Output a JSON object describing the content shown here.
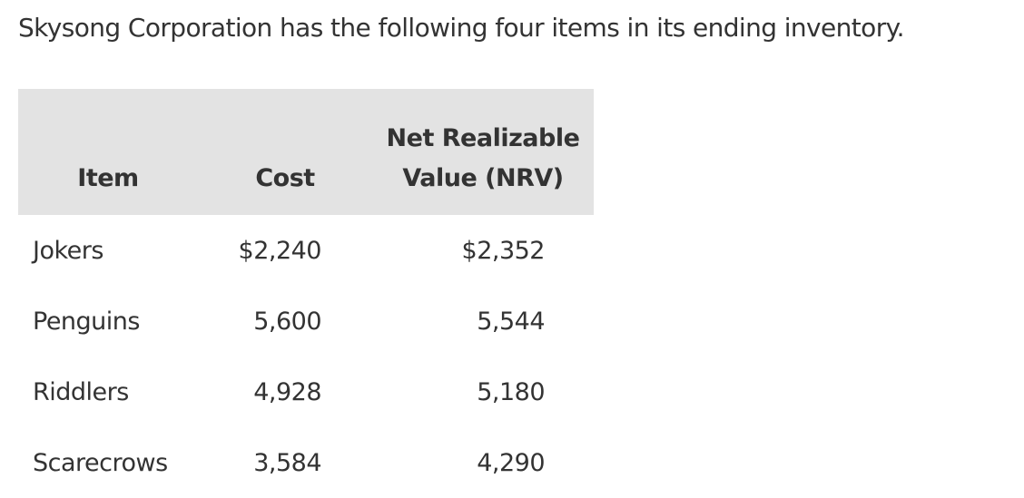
{
  "intro": "Skysong Corporation has the following four items in its ending inventory.",
  "table": {
    "header": [
      "Item",
      "Cost",
      "Net Realizable Value (NRV)"
    ],
    "rows": [
      [
        "Jokers",
        "$2,240",
        "$2,352"
      ],
      [
        "Penguins",
        "5,600",
        "5,544"
      ],
      [
        "Riddlers",
        "4,928",
        "5,180"
      ],
      [
        "Scarecrows",
        "3,584",
        "4,290"
      ]
    ]
  }
}
